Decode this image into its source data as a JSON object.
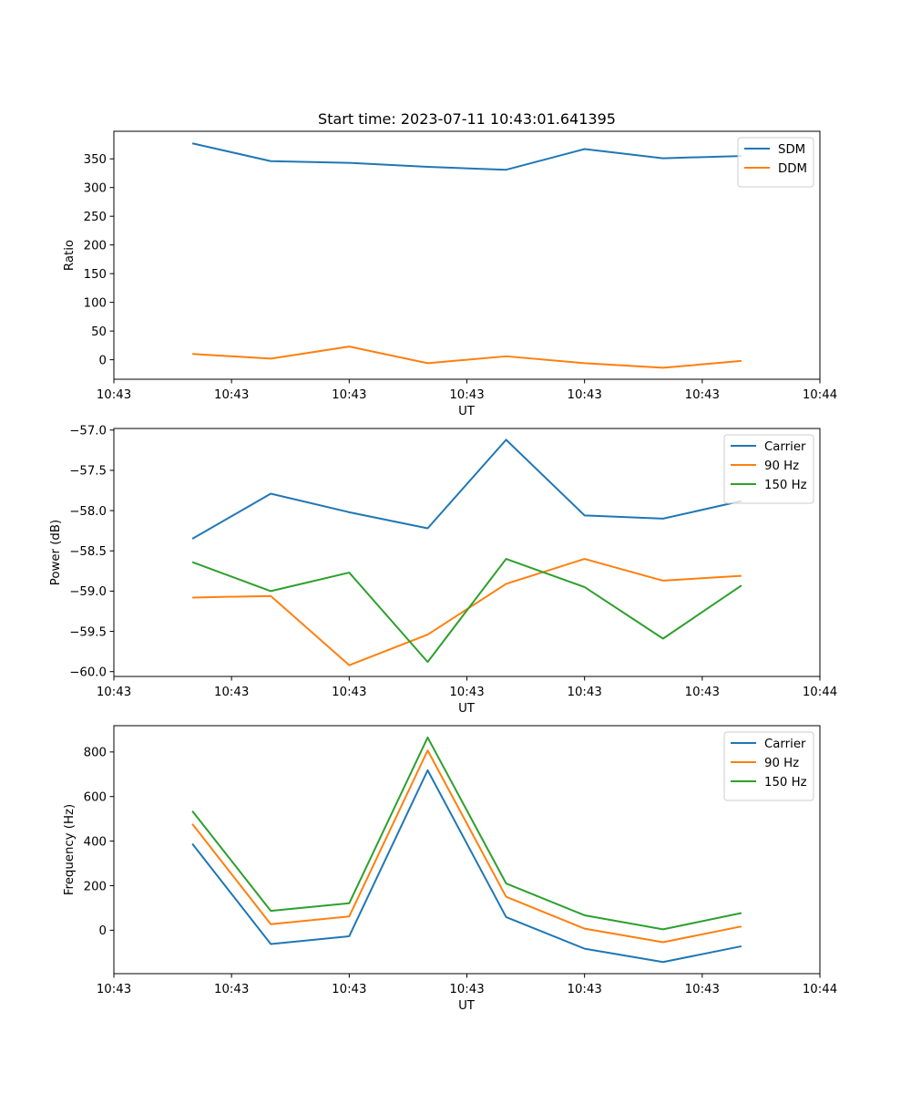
{
  "figure_title": "Start time: 2023-07-11 10:43:01.641395",
  "chart_data": [
    {
      "type": "line",
      "title": "Start time: 2023-07-11 10:43:01.641395",
      "xlabel": "UT",
      "ylabel": "Ratio",
      "x_index": [
        1,
        2,
        3,
        4,
        5,
        6,
        7,
        8
      ],
      "xlim": [
        0,
        9
      ],
      "x_ticks": [
        0,
        1.5,
        3,
        4.5,
        6,
        7.5,
        9
      ],
      "x_tick_labels": [
        "10:43",
        "10:43",
        "10:43",
        "10:43",
        "10:43",
        "10:43",
        "10:44"
      ],
      "ylim": [
        -34,
        398
      ],
      "y_ticks": [
        0,
        50,
        100,
        150,
        200,
        250,
        300,
        350
      ],
      "y_tick_labels": [
        "0",
        "50",
        "100",
        "150",
        "200",
        "250",
        "300",
        "350"
      ],
      "legend_position": "top-right",
      "series": [
        {
          "name": "SDM",
          "color": "#1f77b4",
          "values": [
            377,
            346,
            343,
            336,
            331,
            367,
            351,
            355
          ]
        },
        {
          "name": "DDM",
          "color": "#ff7f0e",
          "values": [
            10,
            2,
            23,
            -6,
            6,
            -6,
            -14,
            -2
          ]
        }
      ]
    },
    {
      "type": "line",
      "title": "",
      "xlabel": "UT",
      "ylabel": "Power (dB)",
      "x_index": [
        1,
        2,
        3,
        4,
        5,
        6,
        7,
        8
      ],
      "xlim": [
        0,
        9
      ],
      "x_ticks": [
        0,
        1.5,
        3,
        4.5,
        6,
        7.5,
        9
      ],
      "x_tick_labels": [
        "10:43",
        "10:43",
        "10:43",
        "10:43",
        "10:43",
        "10:43",
        "10:44"
      ],
      "ylim": [
        -60.06,
        -56.98
      ],
      "y_ticks": [
        -60.0,
        -59.5,
        -59.0,
        -58.5,
        -58.0,
        -57.5,
        -57.0
      ],
      "y_tick_labels": [
        "−60.0",
        "−59.5",
        "−59.0",
        "−58.5",
        "−58.0",
        "−57.5",
        "−57.0"
      ],
      "legend_position": "top-right",
      "series": [
        {
          "name": "Carrier",
          "color": "#1f77b4",
          "values": [
            -58.35,
            -57.79,
            -58.02,
            -58.22,
            -57.12,
            -58.06,
            -58.1,
            -57.88
          ]
        },
        {
          "name": "90 Hz",
          "color": "#ff7f0e",
          "values": [
            -59.08,
            -59.06,
            -59.92,
            -59.54,
            -58.91,
            -58.6,
            -58.87,
            -58.81
          ]
        },
        {
          "name": "150 Hz",
          "color": "#2ca02c",
          "values": [
            -58.64,
            -59.0,
            -58.77,
            -59.88,
            -58.6,
            -58.95,
            -59.59,
            -58.93
          ]
        }
      ]
    },
    {
      "type": "line",
      "title": "",
      "xlabel": "UT",
      "ylabel": "Frequency (Hz)",
      "x_index": [
        1,
        2,
        3,
        4,
        5,
        6,
        7,
        8
      ],
      "xlim": [
        0,
        9
      ],
      "x_ticks": [
        0,
        1.5,
        3,
        4.5,
        6,
        7.5,
        9
      ],
      "x_tick_labels": [
        "10:43",
        "10:43",
        "10:43",
        "10:43",
        "10:43",
        "10:43",
        "10:44"
      ],
      "ylim": [
        -195,
        918
      ],
      "y_ticks": [
        0,
        200,
        400,
        600,
        800
      ],
      "y_tick_labels": [
        "0",
        "200",
        "400",
        "600",
        "800"
      ],
      "legend_position": "top-right",
      "series": [
        {
          "name": "Carrier",
          "color": "#1f77b4",
          "values": [
            388,
            -62,
            -27,
            718,
            59,
            -83,
            -143,
            -72
          ]
        },
        {
          "name": "90 Hz",
          "color": "#ff7f0e",
          "values": [
            477,
            27,
            62,
            807,
            150,
            7,
            -54,
            17
          ]
        },
        {
          "name": "150 Hz",
          "color": "#2ca02c",
          "values": [
            535,
            87,
            121,
            865,
            210,
            67,
            4,
            77
          ]
        }
      ]
    }
  ]
}
